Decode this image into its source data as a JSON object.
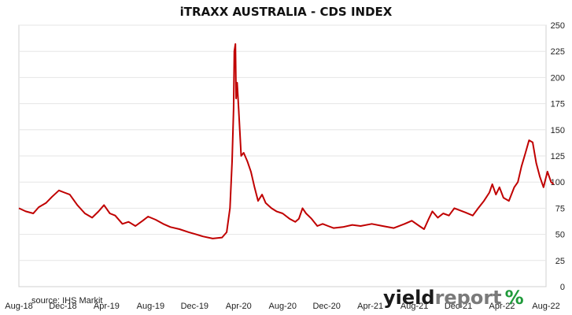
{
  "chart_data": {
    "type": "line",
    "title": "iTRAXX AUSTRALIA - CDS INDEX",
    "source": "source: IHS Markit",
    "xlabel": "",
    "ylabel": "",
    "x_ticks": [
      "Aug-18",
      "Dec-18",
      "Apr-19",
      "Aug-19",
      "Dec-19",
      "Apr-20",
      "Aug-20",
      "Dec-20",
      "Apr-21",
      "Aug-21",
      "Dec-21",
      "Apr-22",
      "Aug-22"
    ],
    "y_ticks": [
      0,
      25,
      50,
      75,
      100,
      125,
      150,
      175,
      200,
      225,
      250
    ],
    "ylim": [
      0,
      250
    ],
    "y_axis_side": "right",
    "grid": "horizontal",
    "line_color": "#c00000",
    "series": [
      {
        "name": "",
        "color": "#c00000",
        "points": [
          [
            "2018-08-01",
            75
          ],
          [
            "2018-08-20",
            72
          ],
          [
            "2018-09-10",
            70
          ],
          [
            "2018-09-25",
            76
          ],
          [
            "2018-10-15",
            80
          ],
          [
            "2018-11-01",
            86
          ],
          [
            "2018-11-20",
            92
          ],
          [
            "2018-12-05",
            90
          ],
          [
            "2018-12-20",
            88
          ],
          [
            "2019-01-10",
            78
          ],
          [
            "2019-01-31",
            70
          ],
          [
            "2019-02-20",
            66
          ],
          [
            "2019-03-10",
            72
          ],
          [
            "2019-03-25",
            78
          ],
          [
            "2019-04-10",
            70
          ],
          [
            "2019-04-25",
            68
          ],
          [
            "2019-05-15",
            60
          ],
          [
            "2019-06-01",
            62
          ],
          [
            "2019-06-20",
            58
          ],
          [
            "2019-07-10",
            63
          ],
          [
            "2019-07-25",
            67
          ],
          [
            "2019-08-15",
            64
          ],
          [
            "2019-09-05",
            60
          ],
          [
            "2019-09-25",
            57
          ],
          [
            "2019-10-20",
            55
          ],
          [
            "2019-11-15",
            52
          ],
          [
            "2019-12-05",
            50
          ],
          [
            "2019-12-25",
            48
          ],
          [
            "2020-01-20",
            46
          ],
          [
            "2020-02-15",
            47
          ],
          [
            "2020-02-28",
            52
          ],
          [
            "2020-03-08",
            75
          ],
          [
            "2020-03-14",
            120
          ],
          [
            "2020-03-18",
            170
          ],
          [
            "2020-03-20",
            225
          ],
          [
            "2020-03-23",
            232
          ],
          [
            "2020-03-25",
            180
          ],
          [
            "2020-03-28",
            195
          ],
          [
            "2020-04-01",
            170
          ],
          [
            "2020-04-08",
            125
          ],
          [
            "2020-04-15",
            128
          ],
          [
            "2020-04-25",
            120
          ],
          [
            "2020-05-05",
            110
          ],
          [
            "2020-05-15",
            95
          ],
          [
            "2020-05-25",
            82
          ],
          [
            "2020-06-05",
            88
          ],
          [
            "2020-06-15",
            80
          ],
          [
            "2020-07-01",
            75
          ],
          [
            "2020-07-15",
            72
          ],
          [
            "2020-08-01",
            70
          ],
          [
            "2020-08-20",
            65
          ],
          [
            "2020-09-05",
            62
          ],
          [
            "2020-09-15",
            65
          ],
          [
            "2020-09-25",
            75
          ],
          [
            "2020-10-05",
            70
          ],
          [
            "2020-10-20",
            65
          ],
          [
            "2020-11-05",
            58
          ],
          [
            "2020-11-20",
            60
          ],
          [
            "2020-12-05",
            58
          ],
          [
            "2020-12-20",
            56
          ],
          [
            "2021-01-15",
            57
          ],
          [
            "2021-02-10",
            59
          ],
          [
            "2021-03-05",
            58
          ],
          [
            "2021-04-05",
            60
          ],
          [
            "2021-05-05",
            58
          ],
          [
            "2021-06-05",
            56
          ],
          [
            "2021-07-05",
            60
          ],
          [
            "2021-07-25",
            63
          ],
          [
            "2021-08-15",
            58
          ],
          [
            "2021-08-28",
            55
          ],
          [
            "2021-09-10",
            65
          ],
          [
            "2021-09-20",
            72
          ],
          [
            "2021-10-05",
            66
          ],
          [
            "2021-10-20",
            70
          ],
          [
            "2021-11-05",
            68
          ],
          [
            "2021-11-20",
            75
          ],
          [
            "2021-12-05",
            73
          ],
          [
            "2021-12-20",
            71
          ],
          [
            "2022-01-10",
            68
          ],
          [
            "2022-01-25",
            75
          ],
          [
            "2022-02-10",
            82
          ],
          [
            "2022-02-25",
            90
          ],
          [
            "2022-03-05",
            98
          ],
          [
            "2022-03-15",
            88
          ],
          [
            "2022-03-25",
            95
          ],
          [
            "2022-04-05",
            85
          ],
          [
            "2022-04-20",
            82
          ],
          [
            "2022-05-05",
            95
          ],
          [
            "2022-05-15",
            100
          ],
          [
            "2022-05-25",
            115
          ],
          [
            "2022-06-05",
            128
          ],
          [
            "2022-06-15",
            140
          ],
          [
            "2022-06-25",
            138
          ],
          [
            "2022-07-05",
            118
          ],
          [
            "2022-07-15",
            105
          ],
          [
            "2022-07-25",
            95
          ],
          [
            "2022-08-05",
            110
          ],
          [
            "2022-08-15",
            100
          ],
          [
            "2022-08-22",
            98
          ]
        ]
      }
    ]
  },
  "branding": {
    "logo_part1": "yield",
    "logo_part2": "report",
    "logo_symbol": "%",
    "colors": {
      "dark": "#1a1a1a",
      "grey": "#7a7a7a",
      "green": "#1f9a3a",
      "red": "#d0021b"
    }
  }
}
